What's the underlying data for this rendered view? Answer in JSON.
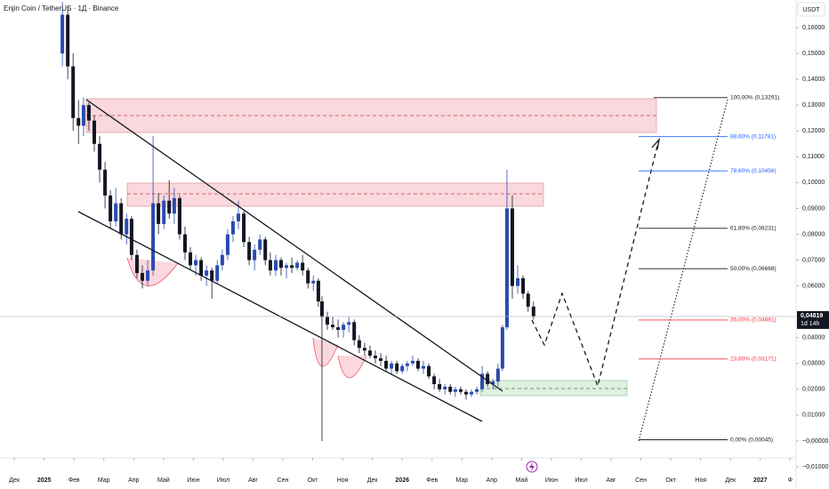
{
  "chart_data": {
    "type": "candlestick",
    "title": "Enjin Coin / TetherUS · 1Д · Binance",
    "currency": "USDT",
    "candles": {
      "x": [
        1.61,
        1.79,
        1.97,
        2.15,
        2.32,
        2.5,
        2.68,
        2.86,
        3.04,
        3.22,
        3.4,
        3.58,
        3.76,
        3.93,
        4.11,
        4.29,
        4.47,
        4.65,
        4.83,
        5.01,
        5.19,
        5.36,
        5.54,
        5.72,
        5.9,
        6.08,
        6.26,
        6.44,
        6.62,
        6.8,
        6.97,
        7.15,
        7.33,
        7.51,
        7.69,
        7.87,
        8.05,
        8.23,
        8.41,
        8.58,
        8.76,
        8.94,
        9.12,
        9.3,
        9.48,
        9.66,
        9.84,
        10.02,
        10.19,
        10.31,
        10.49,
        10.67,
        10.85,
        11.03,
        11.21,
        11.39,
        11.56,
        11.74,
        11.92,
        12.1,
        12.28,
        12.46,
        12.64,
        12.82,
        13.0,
        13.17,
        13.35,
        13.53,
        13.71,
        13.89,
        14.07,
        14.25,
        14.43,
        14.61,
        14.78,
        14.96,
        15.14,
        15.32,
        15.5,
        15.68,
        15.86,
        16.04,
        16.21,
        16.36,
        16.51,
        16.69,
        16.87,
        17.05,
        17.22,
        17.4
      ],
      "open": [
        0.15,
        0.165,
        0.145,
        0.125,
        0.122,
        0.13,
        0.124,
        0.115,
        0.105,
        0.095,
        0.085,
        0.092,
        0.08,
        0.086,
        0.072,
        0.065,
        0.062,
        0.066,
        0.092,
        0.084,
        0.093,
        0.088,
        0.094,
        0.08,
        0.073,
        0.068,
        0.07,
        0.064,
        0.066,
        0.062,
        0.068,
        0.072,
        0.08,
        0.085,
        0.088,
        0.077,
        0.07,
        0.074,
        0.078,
        0.07,
        0.066,
        0.07,
        0.067,
        0.068,
        0.067,
        0.069,
        0.066,
        0.061,
        0.062,
        0.054,
        0.048,
        0.045,
        0.044,
        0.043,
        0.045,
        0.046,
        0.039,
        0.036,
        0.035,
        0.033,
        0.032,
        0.031,
        0.028,
        0.03,
        0.027,
        0.029,
        0.03,
        0.031,
        0.028,
        0.029,
        0.025,
        0.022,
        0.02,
        0.021,
        0.019,
        0.02,
        0.019,
        0.018,
        0.019,
        0.02,
        0.026,
        0.022,
        0.023,
        0.028,
        0.044,
        0.09,
        0.06,
        0.063,
        0.057,
        0.052
      ],
      "high": [
        0.17,
        0.168,
        0.15,
        0.132,
        0.133,
        0.131,
        0.126,
        0.118,
        0.108,
        0.097,
        0.098,
        0.094,
        0.088,
        0.087,
        0.074,
        0.068,
        0.07,
        0.118,
        0.096,
        0.095,
        0.101,
        0.098,
        0.095,
        0.083,
        0.075,
        0.072,
        0.071,
        0.068,
        0.067,
        0.07,
        0.074,
        0.082,
        0.087,
        0.093,
        0.089,
        0.079,
        0.076,
        0.08,
        0.079,
        0.073,
        0.072,
        0.071,
        0.069,
        0.071,
        0.07,
        0.072,
        0.067,
        0.064,
        0.063,
        0.056,
        0.05,
        0.048,
        0.047,
        0.046,
        0.048,
        0.047,
        0.041,
        0.038,
        0.037,
        0.035,
        0.034,
        0.033,
        0.031,
        0.031,
        0.03,
        0.031,
        0.033,
        0.032,
        0.031,
        0.03,
        0.026,
        0.024,
        0.022,
        0.022,
        0.021,
        0.021,
        0.02,
        0.02,
        0.021,
        0.029,
        0.027,
        0.024,
        0.03,
        0.045,
        0.105,
        0.095,
        0.068,
        0.064,
        0.058,
        0.054
      ],
      "low": [
        0.145,
        0.14,
        0.12,
        0.115,
        0.118,
        0.12,
        0.112,
        0.1,
        0.09,
        0.082,
        0.083,
        0.078,
        0.076,
        0.07,
        0.063,
        0.059,
        0.06,
        0.064,
        0.08,
        0.082,
        0.086,
        0.084,
        0.078,
        0.07,
        0.066,
        0.064,
        0.062,
        0.06,
        0.055,
        0.061,
        0.066,
        0.07,
        0.077,
        0.082,
        0.075,
        0.068,
        0.066,
        0.072,
        0.068,
        0.064,
        0.064,
        0.064,
        0.063,
        0.065,
        0.066,
        0.064,
        0.059,
        0.058,
        0.052,
        0.0,
        0.043,
        0.043,
        0.04,
        0.04,
        0.042,
        0.037,
        0.034,
        0.033,
        0.032,
        0.03,
        0.029,
        0.027,
        0.026,
        0.026,
        0.026,
        0.027,
        0.029,
        0.027,
        0.026,
        0.024,
        0.02,
        0.019,
        0.018,
        0.018,
        0.017,
        0.018,
        0.016,
        0.017,
        0.018,
        0.019,
        0.021,
        0.02,
        0.021,
        0.027,
        0.043,
        0.055,
        0.057,
        0.055,
        0.05,
        0.047
      ],
      "close": [
        0.165,
        0.145,
        0.125,
        0.122,
        0.13,
        0.124,
        0.115,
        0.105,
        0.095,
        0.085,
        0.092,
        0.08,
        0.086,
        0.072,
        0.065,
        0.062,
        0.066,
        0.092,
        0.084,
        0.093,
        0.088,
        0.094,
        0.08,
        0.073,
        0.068,
        0.07,
        0.064,
        0.066,
        0.062,
        0.068,
        0.072,
        0.08,
        0.085,
        0.088,
        0.077,
        0.07,
        0.074,
        0.078,
        0.07,
        0.066,
        0.07,
        0.067,
        0.068,
        0.067,
        0.069,
        0.066,
        0.061,
        0.062,
        0.054,
        0.048,
        0.045,
        0.044,
        0.043,
        0.045,
        0.046,
        0.039,
        0.036,
        0.035,
        0.033,
        0.032,
        0.031,
        0.028,
        0.03,
        0.027,
        0.029,
        0.03,
        0.031,
        0.028,
        0.029,
        0.025,
        0.022,
        0.02,
        0.021,
        0.019,
        0.02,
        0.019,
        0.018,
        0.019,
        0.02,
        0.026,
        0.022,
        0.023,
        0.028,
        0.044,
        0.09,
        0.06,
        0.063,
        0.057,
        0.052,
        0.04819
      ]
    },
    "up_color": "#2a4bb0",
    "down_color": "#131722",
    "xlim": [
      -0.48,
      26.2
    ],
    "xticks": [
      {
        "value": 0,
        "label": "Дек"
      },
      {
        "value": 1,
        "label": "2025"
      },
      {
        "value": 2,
        "label": "Фев"
      },
      {
        "value": 3,
        "label": "Мар"
      },
      {
        "value": 4,
        "label": "Апр"
      },
      {
        "value": 5,
        "label": "Май"
      },
      {
        "value": 6,
        "label": "Июн"
      },
      {
        "value": 7,
        "label": "Июл"
      },
      {
        "value": 8,
        "label": "Авг"
      },
      {
        "value": 9,
        "label": "Сен"
      },
      {
        "value": 10,
        "label": "Окт"
      },
      {
        "value": 11,
        "label": "Ноя"
      },
      {
        "value": 12,
        "label": "Дек"
      },
      {
        "value": 13,
        "label": "2026"
      },
      {
        "value": 14,
        "label": "Фев"
      },
      {
        "value": 15,
        "label": "Мар"
      },
      {
        "value": 16,
        "label": "Апр"
      },
      {
        "value": 17,
        "label": "Май"
      },
      {
        "value": 18,
        "label": "Июн"
      },
      {
        "value": 19,
        "label": "Июл"
      },
      {
        "value": 20,
        "label": "Авг"
      },
      {
        "value": 21,
        "label": "Сен"
      },
      {
        "value": 22,
        "label": "Окт"
      },
      {
        "value": 23,
        "label": "Ноя"
      },
      {
        "value": 24,
        "label": "Дек"
      },
      {
        "value": 25,
        "label": "2027"
      },
      {
        "value": 26,
        "label": "Ф"
      }
    ],
    "ylim": [
      -0.01,
      0.17
    ],
    "yticks": [
      {
        "value": 0.16,
        "label": "0,16000"
      },
      {
        "value": 0.15,
        "label": "0,15000"
      },
      {
        "value": 0.14,
        "label": "0,14000"
      },
      {
        "value": 0.13,
        "label": "0,13000"
      },
      {
        "value": 0.12,
        "label": "0,12000"
      },
      {
        "value": 0.11,
        "label": "0,11000"
      },
      {
        "value": 0.1,
        "label": "0,10000"
      },
      {
        "value": 0.09,
        "label": "0,09000"
      },
      {
        "value": 0.08,
        "label": "0,08000"
      },
      {
        "value": 0.07,
        "label": "0,07000"
      },
      {
        "value": 0.06,
        "label": "0,06000"
      },
      {
        "value": 0.04,
        "label": "0,04000"
      },
      {
        "value": 0.03,
        "label": "0,03000"
      },
      {
        "value": 0.02,
        "label": "0,02000"
      },
      {
        "value": 0.01,
        "label": "0,01000"
      },
      {
        "value": 0,
        "label": "−0,00000"
      },
      {
        "value": -0.01,
        "label": "−0,01000"
      }
    ],
    "last_price": {
      "value": 0.04819,
      "label": "0,04819",
      "countdown": "1d 14h"
    },
    "fib_levels": [
      {
        "value": 0.13291,
        "label": "100,00% (0,13291)",
        "color": "#131722"
      },
      {
        "value": 0.11781,
        "label": "88,60% (0,11781)",
        "color": "#2962ff"
      },
      {
        "value": 0.10456,
        "label": "78,60% (0,10456)",
        "color": "#2962ff"
      },
      {
        "value": 0.08231,
        "label": "61,80% (0,08231)",
        "color": "#131722"
      },
      {
        "value": 0.06668,
        "label": "50,00% (0,06668)",
        "color": "#131722"
      },
      {
        "value": 0.04681,
        "label": "35,00% (0,04681)",
        "color": "#f23645"
      },
      {
        "value": 0.03171,
        "label": "23,60% (0,03171)",
        "color": "#f23645"
      },
      {
        "value": 0.00045,
        "label": "0,00% (0,00045)",
        "color": "#131722"
      }
    ]
  }
}
